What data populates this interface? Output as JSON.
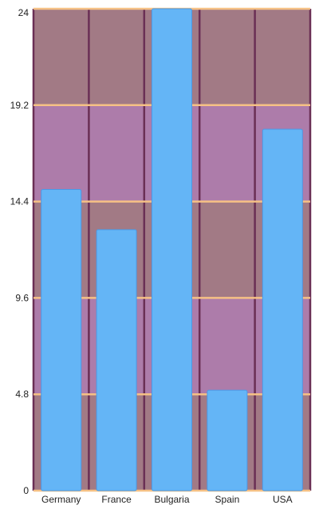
{
  "chart_data": {
    "type": "bar",
    "categories": [
      "Germany",
      "France",
      "Bulgaria",
      "Spain",
      "USA"
    ],
    "values": [
      15,
      13,
      24,
      5,
      18
    ],
    "y_ticks": [
      "0",
      "4.8",
      "9.6",
      "14.4",
      "19.2",
      "24"
    ],
    "ylim": [
      0,
      24
    ],
    "grid": true,
    "legend": "none",
    "colors": {
      "bar_fill": "#64b5f6",
      "bar_stroke": "#4a9ae8",
      "band_light": "#ad7caa",
      "band_dark": "#a27a85",
      "vertical_gridline": "#6a2f55",
      "horizontal_gridline": "#f6c185",
      "axis_line": "#f6c185"
    }
  }
}
